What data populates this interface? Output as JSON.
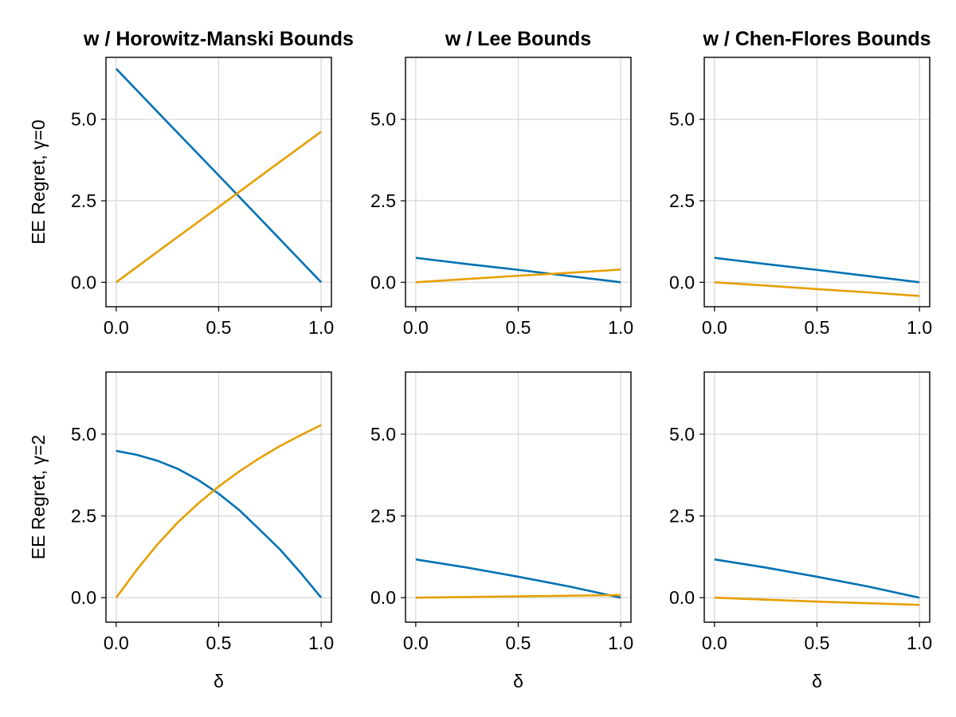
{
  "figure": {
    "column_titles": [
      "w / Horowitz-Manski Bounds",
      "w / Lee Bounds",
      "w / Chen-Flores Bounds"
    ],
    "row_ylabels": [
      "EE Regret, γ=0",
      "EE Regret, γ=2"
    ],
    "xlabel": "δ"
  },
  "colors": {
    "blue": "#0072b2",
    "orange": "#e69f00"
  },
  "chart_data": [
    {
      "type": "line",
      "title": "w / Horowitz-Manski Bounds",
      "ylabel": "EE Regret, γ=0",
      "xlabel": "",
      "xlim": [
        -0.05,
        1.05
      ],
      "ylim": [
        -0.75,
        6.9
      ],
      "xticks": [
        "0.0",
        "0.5",
        "1.0"
      ],
      "yticks": [
        "0.0",
        "2.5",
        "5.0"
      ],
      "grid": true,
      "x": [
        0,
        0.25,
        0.5,
        0.75,
        1
      ],
      "series": [
        {
          "color": "#0072b2",
          "values": [
            6.55,
            4.91,
            3.28,
            1.64,
            0
          ]
        },
        {
          "color": "#e69f00",
          "values": [
            0,
            1.16,
            2.31,
            3.47,
            4.62
          ]
        }
      ]
    },
    {
      "type": "line",
      "title": "w / Lee Bounds",
      "ylabel": "",
      "xlabel": "",
      "xlim": [
        -0.05,
        1.05
      ],
      "ylim": [
        -0.75,
        6.9
      ],
      "xticks": [
        "0.0",
        "0.5",
        "1.0"
      ],
      "yticks": [
        "0.0",
        "2.5",
        "5.0"
      ],
      "grid": true,
      "x": [
        0,
        0.25,
        0.5,
        0.75,
        1
      ],
      "series": [
        {
          "color": "#0072b2",
          "values": [
            0.75,
            0.56,
            0.38,
            0.19,
            0
          ]
        },
        {
          "color": "#e69f00",
          "values": [
            0,
            0.1,
            0.2,
            0.29,
            0.39
          ]
        }
      ]
    },
    {
      "type": "line",
      "title": "w / Chen-Flores Bounds",
      "ylabel": "",
      "xlabel": "",
      "xlim": [
        -0.05,
        1.05
      ],
      "ylim": [
        -0.75,
        6.9
      ],
      "xticks": [
        "0.0",
        "0.5",
        "1.0"
      ],
      "yticks": [
        "0.0",
        "2.5",
        "5.0"
      ],
      "grid": true,
      "x": [
        0,
        0.25,
        0.5,
        0.75,
        1
      ],
      "series": [
        {
          "color": "#0072b2",
          "values": [
            0.75,
            0.56,
            0.38,
            0.19,
            0
          ]
        },
        {
          "color": "#e69f00",
          "values": [
            0,
            -0.1,
            -0.21,
            -0.31,
            -0.42
          ]
        }
      ]
    },
    {
      "type": "line",
      "title": "",
      "ylabel": "EE Regret, γ=2",
      "xlabel": "δ",
      "xlim": [
        -0.05,
        1.05
      ],
      "ylim": [
        -0.75,
        6.9
      ],
      "xticks": [
        "0.0",
        "0.5",
        "1.0"
      ],
      "yticks": [
        "0.0",
        "2.5",
        "5.0"
      ],
      "grid": true,
      "x": [
        0,
        0.1,
        0.2,
        0.3,
        0.4,
        0.5,
        0.6,
        0.7,
        0.8,
        0.9,
        1
      ],
      "series": [
        {
          "color": "#0072b2",
          "values": [
            4.49,
            4.37,
            4.19,
            3.94,
            3.6,
            3.18,
            2.68,
            2.08,
            1.47,
            0.76,
            0
          ]
        },
        {
          "color": "#e69f00",
          "values": [
            0,
            0.85,
            1.62,
            2.3,
            2.88,
            3.4,
            3.86,
            4.27,
            4.64,
            4.97,
            5.28
          ]
        }
      ]
    },
    {
      "type": "line",
      "title": "",
      "ylabel": "",
      "xlabel": "δ",
      "xlim": [
        -0.05,
        1.05
      ],
      "ylim": [
        -0.75,
        6.9
      ],
      "xticks": [
        "0.0",
        "0.5",
        "1.0"
      ],
      "yticks": [
        "0.0",
        "2.5",
        "5.0"
      ],
      "grid": true,
      "x": [
        0,
        0.25,
        0.5,
        0.75,
        1
      ],
      "series": [
        {
          "color": "#0072b2",
          "values": [
            1.17,
            0.92,
            0.64,
            0.34,
            0
          ]
        },
        {
          "color": "#e69f00",
          "values": [
            0,
            0.02,
            0.04,
            0.06,
            0.08
          ]
        }
      ]
    },
    {
      "type": "line",
      "title": "",
      "ylabel": "",
      "xlabel": "δ",
      "xlim": [
        -0.05,
        1.05
      ],
      "ylim": [
        -0.75,
        6.9
      ],
      "xticks": [
        "0.0",
        "0.5",
        "1.0"
      ],
      "yticks": [
        "0.0",
        "2.5",
        "5.0"
      ],
      "grid": true,
      "x": [
        0,
        0.25,
        0.5,
        0.75,
        1
      ],
      "series": [
        {
          "color": "#0072b2",
          "values": [
            1.17,
            0.92,
            0.64,
            0.34,
            0
          ]
        },
        {
          "color": "#e69f00",
          "values": [
            0,
            -0.06,
            -0.12,
            -0.17,
            -0.22
          ]
        }
      ]
    }
  ]
}
